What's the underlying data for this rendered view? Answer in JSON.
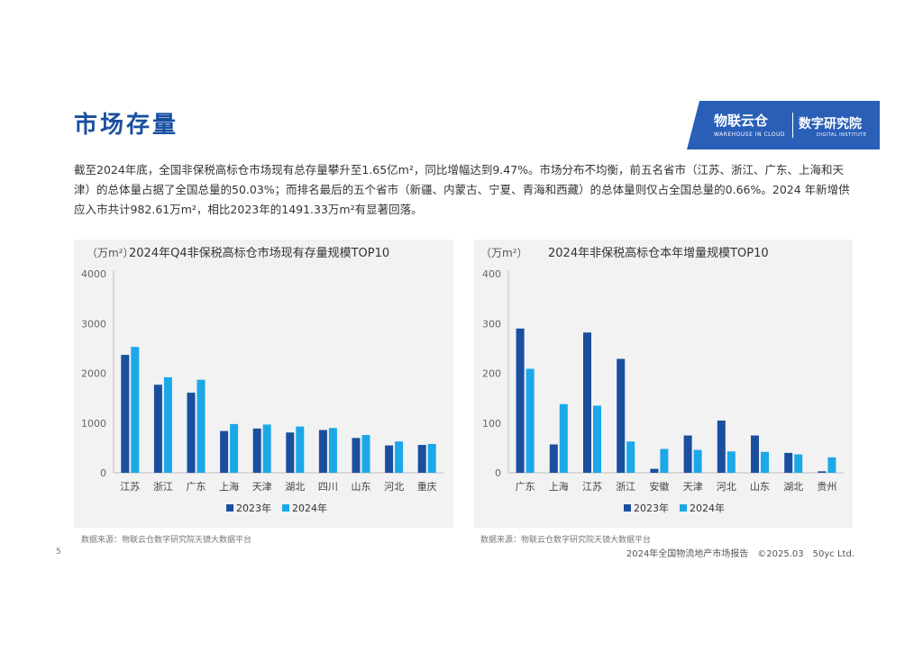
{
  "title": "市场存量",
  "logo": {
    "left": "物联云仓",
    "left_sub": "WAREHOUSE IN CLOUD",
    "right": "数字研究院",
    "right_sub": "DIGITAL INSTITUTE"
  },
  "intro": "截至2024年底，全国非保税高标仓市场现有总存量攀升至1.65亿m²，同比增幅达到9.47%。市场分布不均衡，前五名省市（江苏、浙江、广东、上海和天津）的总体量占据了全国总量的50.03%；而排名最后的五个省市（新疆、内蒙古、宁夏、青海和西藏）的总体量则仅占全国总量的0.66%。2024 年新增供应入市共计982.61万m²，相比2023年的1491.33万m²有显著回落。",
  "colors": {
    "series_2023": "#1a4fa0",
    "series_2024": "#1ba8e8",
    "title_blue": "#1a4fa0"
  },
  "chart_data": [
    {
      "type": "bar",
      "title": "2024年Q4非保税高标仓市场现有存量规模TOP10",
      "ylabel": "（万m²）",
      "categories": [
        "江苏",
        "浙江",
        "广东",
        "上海",
        "天津",
        "湖北",
        "四川",
        "山东",
        "河北",
        "重庆"
      ],
      "series": [
        {
          "name": "2023年",
          "values": [
            2370,
            1770,
            1610,
            840,
            890,
            810,
            860,
            700,
            550,
            560
          ]
        },
        {
          "name": "2024年",
          "values": [
            2530,
            1920,
            1870,
            980,
            970,
            930,
            900,
            760,
            630,
            580
          ]
        }
      ],
      "ylim": [
        0,
        4000
      ],
      "yticks": [
        0,
        1000,
        2000,
        3000,
        4000
      ],
      "legend": "bottom",
      "grid": false
    },
    {
      "type": "bar",
      "title": "2024年非保税高标仓本年增量规模TOP10",
      "ylabel": "（万m²）",
      "categories": [
        "广东",
        "上海",
        "江苏",
        "浙江",
        "安徽",
        "天津",
        "河北",
        "山东",
        "湖北",
        "贵州"
      ],
      "series": [
        {
          "name": "2023年",
          "values": [
            290,
            57,
            282,
            229,
            8,
            75,
            105,
            75,
            40,
            3
          ]
        },
        {
          "name": "2024年",
          "values": [
            209,
            138,
            135,
            63,
            48,
            46,
            43,
            42,
            37,
            31
          ]
        }
      ],
      "ylim": [
        0,
        400
      ],
      "yticks": [
        0,
        100,
        200,
        300,
        400
      ],
      "legend": "bottom",
      "grid": false
    }
  ],
  "sources": [
    "数据来源：物联云仓数字研究院天镜大数据平台",
    "数据来源：物联云仓数字研究院天镜大数据平台"
  ],
  "page_number": "5",
  "footer": "2024年全国物流地产市场报告　©2025.03　50yc Ltd."
}
